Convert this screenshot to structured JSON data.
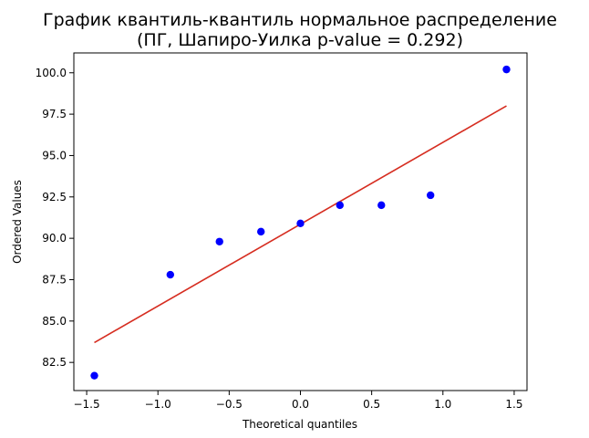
{
  "chart_data": {
    "type": "scatter",
    "title_lines": [
      "График квантиль-квантиль нормальное распределение",
      "(ПГ, Шапиро-Уилка p-value = 0.292)"
    ],
    "xlabel": "Theoretical quantiles",
    "ylabel": "Ordered Values",
    "xlim": [
      -1.59,
      1.59
    ],
    "ylim": [
      80.8,
      101.2
    ],
    "xticks": [
      -1.5,
      -1.0,
      -0.5,
      0.0,
      0.5,
      1.0,
      1.5
    ],
    "xtick_labels": [
      "−1.5",
      "−1.0",
      "−0.5",
      "0.0",
      "0.5",
      "1.0",
      "1.5"
    ],
    "yticks": [
      82.5,
      85.0,
      87.5,
      90.0,
      92.5,
      95.0,
      97.5,
      100.0
    ],
    "ytick_labels": [
      "82.5",
      "85.0",
      "87.5",
      "90.0",
      "92.5",
      "95.0",
      "97.5",
      "100.0"
    ],
    "points": {
      "color": "#0000ff",
      "x": [
        -1.446,
        -0.913,
        -0.568,
        -0.277,
        0.0,
        0.277,
        0.568,
        0.913,
        1.446
      ],
      "y": [
        81.7,
        87.8,
        89.8,
        90.4,
        90.9,
        92.0,
        92.0,
        92.6,
        100.2
      ]
    },
    "fit_line": {
      "color": "#d62d20",
      "x": [
        -1.446,
        1.446
      ],
      "y": [
        83.7,
        98.0
      ]
    }
  }
}
